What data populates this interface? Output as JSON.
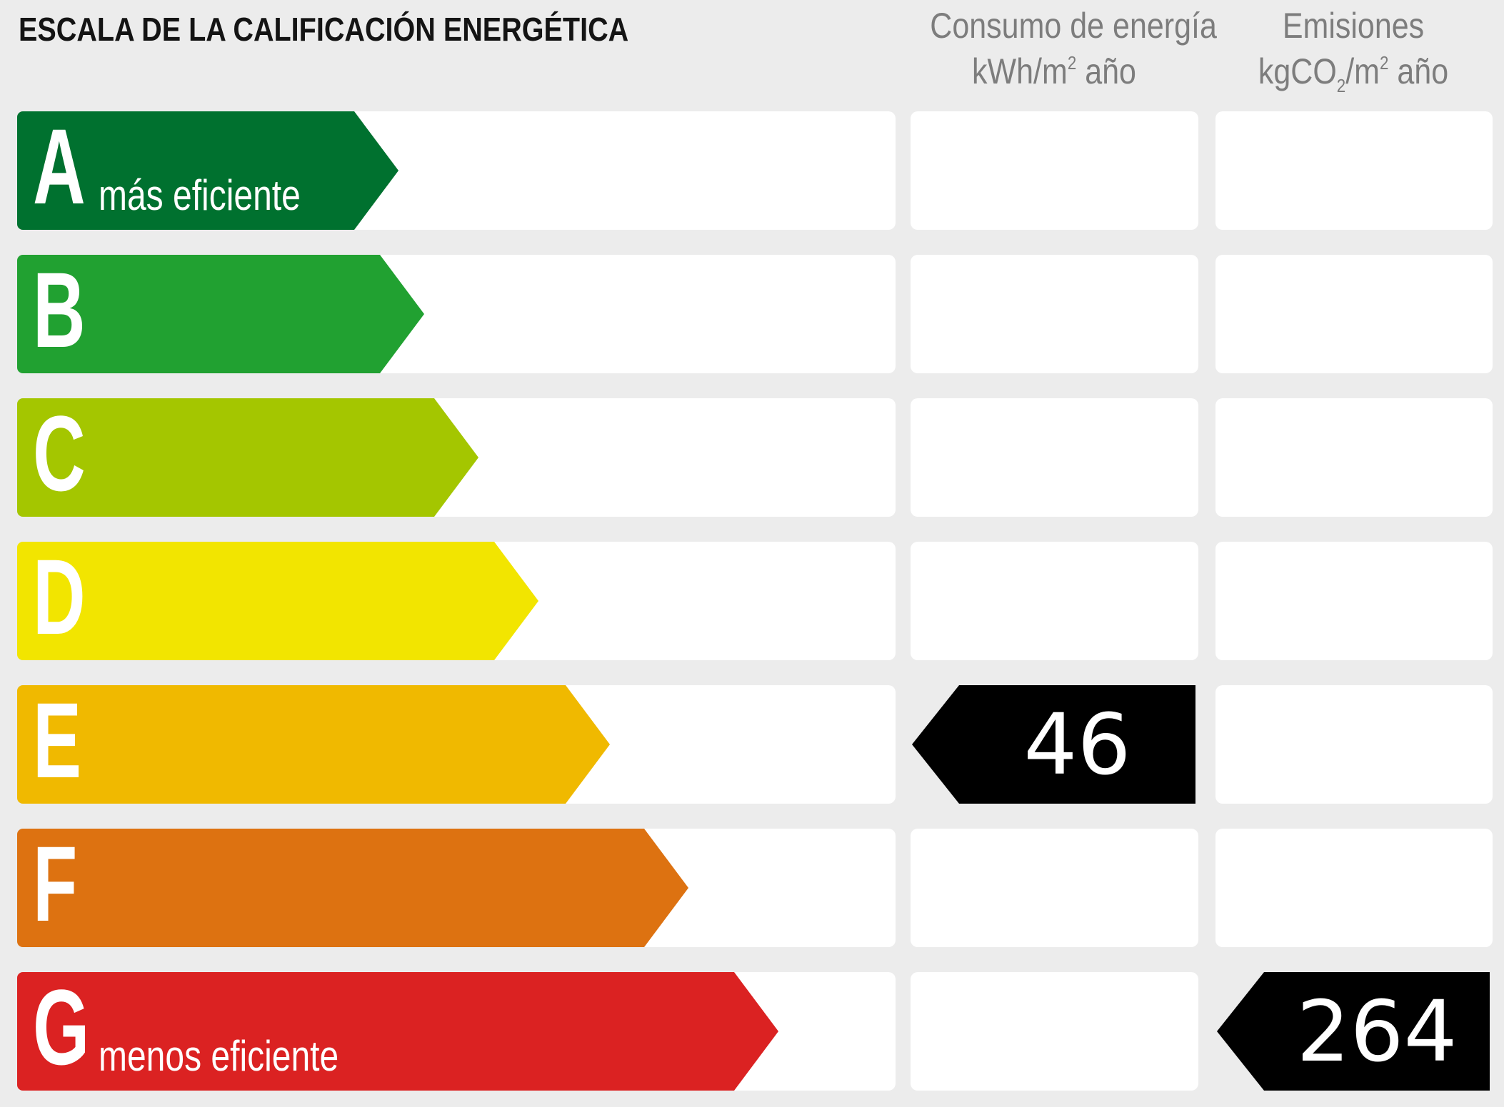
{
  "header": {
    "title": "ESCALA DE LA CALIFICACIÓN ENERGÉTICA",
    "energy_col": {
      "line1": "Consumo de energía",
      "unit_prefix": "kWh/m",
      "unit_sup": "2",
      "unit_suffix": " año"
    },
    "emissions_col": {
      "line1": "Emisiones",
      "unit_prefix": "kgCO",
      "unit_sub": "2",
      "unit_mid": "/m",
      "unit_sup": "2",
      "unit_suffix": " año"
    }
  },
  "grades": [
    {
      "letter": "A",
      "caption": "más eficiente",
      "color": "#00712f"
    },
    {
      "letter": "B",
      "caption": "",
      "color": "#21a131"
    },
    {
      "letter": "C",
      "caption": "",
      "color": "#a4c600"
    },
    {
      "letter": "D",
      "caption": "",
      "color": "#f2e500"
    },
    {
      "letter": "E",
      "caption": "",
      "color": "#f0b900"
    },
    {
      "letter": "F",
      "caption": "",
      "color": "#dd7211"
    },
    {
      "letter": "G",
      "caption": "menos eficiente",
      "color": "#db2222"
    }
  ],
  "ratings": {
    "energy": {
      "value": "46",
      "grade": "E"
    },
    "emissions": {
      "value": "264",
      "grade": "G"
    }
  },
  "marker_color": "#000000"
}
